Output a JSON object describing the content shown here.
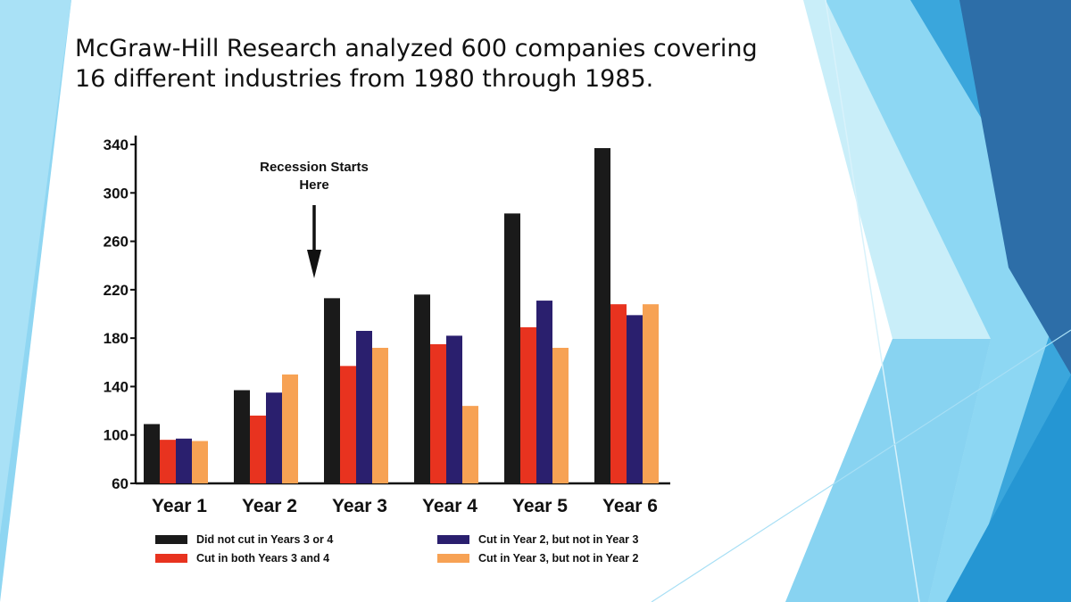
{
  "slide": {
    "title_line1": "McGraw-Hill Research analyzed 600 companies covering",
    "title_line2": "16 different industries from 1980 through 1985."
  },
  "theme": {
    "accent_dark": "#2d6ea8",
    "accent_mid": "#3aa6dc",
    "accent_light": "#7fd0f0",
    "accent_pale": "#c4ecfa"
  },
  "chart_data": {
    "type": "bar",
    "title": "",
    "xlabel": "",
    "ylabel": "",
    "ylim": [
      60,
      340
    ],
    "yticks": [
      60,
      100,
      140,
      180,
      220,
      260,
      300,
      340
    ],
    "categories": [
      "Year 1",
      "Year 2",
      "Year 3",
      "Year 4",
      "Year 5",
      "Year 6"
    ],
    "series": [
      {
        "name": "Did not cut in Years 3 or 4",
        "color": "#1a1a1a",
        "values": [
          109,
          137,
          213,
          216,
          283,
          337
        ]
      },
      {
        "name": "Cut in both Years 3 and 4",
        "color": "#e8331f",
        "values": [
          96,
          116,
          157,
          175,
          189,
          208
        ]
      },
      {
        "name": "Cut in Year 2, but not in Year 3",
        "color": "#2a1f6e",
        "values": [
          97,
          135,
          186,
          182,
          211,
          199
        ]
      },
      {
        "name": "Cut in Year 3, but not in Year 2",
        "color": "#f7a254",
        "values": [
          95,
          150,
          172,
          124,
          172,
          208
        ]
      }
    ],
    "annotation": {
      "text_line1": "Recession Starts",
      "text_line2": "Here",
      "points_to": "Year 3"
    },
    "legend_position": "bottom",
    "grid": false
  }
}
